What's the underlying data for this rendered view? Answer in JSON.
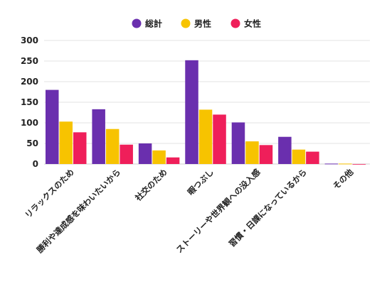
{
  "chart_data": {
    "type": "bar",
    "title": "",
    "xlabel": "",
    "ylabel": "",
    "ylim": [
      0,
      300
    ],
    "yticks": [
      0,
      50,
      100,
      150,
      200,
      250,
      300
    ],
    "grid": true,
    "legend_position": "top-center",
    "categories": [
      "リラックスのため",
      "勝利や達成感を味わいたいから",
      "社交のため",
      "暇つぶし",
      "ストーリーや世界観への没入感",
      "習慣・日課になっているから",
      "その他"
    ],
    "series": [
      {
        "name": "総計",
        "color": "#6a2fae",
        "values": [
          180,
          133,
          50,
          252,
          101,
          66,
          1
        ]
      },
      {
        "name": "男性",
        "color": "#f7c300",
        "values": [
          103,
          85,
          33,
          132,
          55,
          35,
          1
        ]
      },
      {
        "name": "女性",
        "color": "#ef1f5a",
        "values": [
          77,
          47,
          16,
          120,
          46,
          30,
          0
        ]
      }
    ]
  }
}
